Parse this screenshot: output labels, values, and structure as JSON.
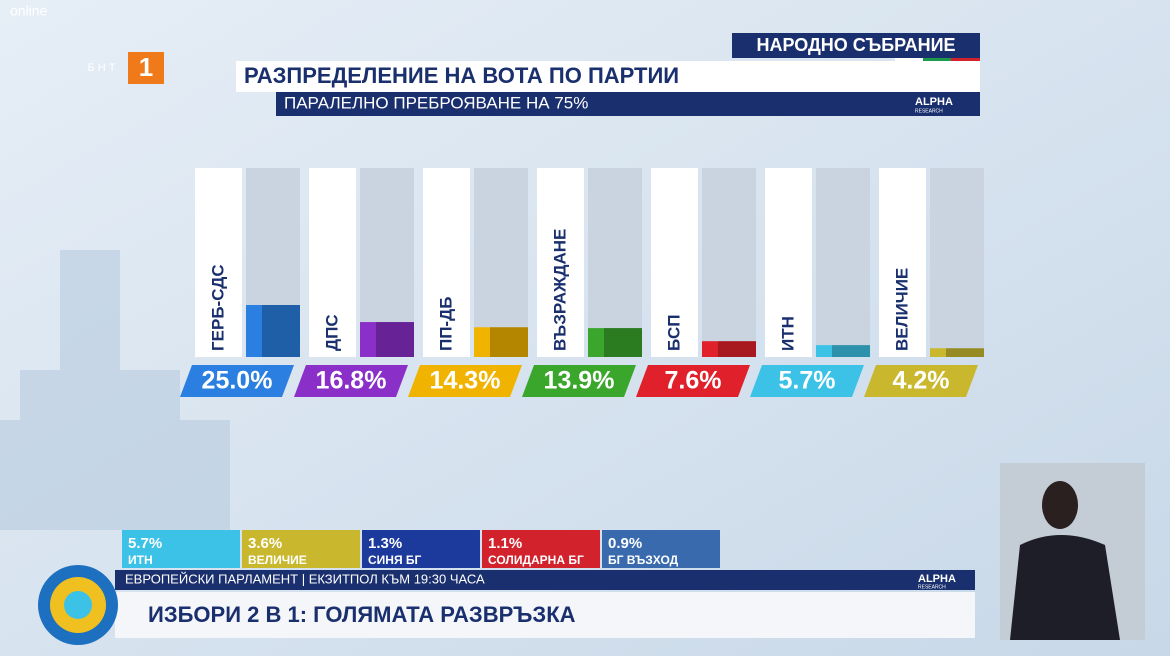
{
  "channel": {
    "watermark": "online",
    "logo_text": "БНТ",
    "logo_number": "1"
  },
  "header": {
    "tag": "НАРОДНО СЪБРАНИЕ",
    "source": "ALPHA",
    "source_sub": "RESEARCH"
  },
  "chart_data": {
    "type": "bar",
    "title": "РАЗПРЕДЕЛЕНИЕ НА ВОТА ПО ПАРТИИ",
    "subtitle": "ПАРАЛЕЛНО ПРЕБРОЯВАНЕ НА 75%",
    "categories": [
      "ГЕРБ-СДС",
      "ДПС",
      "ПП-ДБ",
      "ВЪЗРАЖДАНЕ",
      "БСП",
      "ИТН",
      "ВЕЛИЧИЕ"
    ],
    "values": [
      25.0,
      16.8,
      14.3,
      13.9,
      7.6,
      5.7,
      4.2
    ],
    "value_labels": [
      "25.0%",
      "16.8%",
      "14.3%",
      "13.9%",
      "7.6%",
      "5.7%",
      "4.2%"
    ],
    "colors": [
      "#2a7fe0",
      "#8a2fc8",
      "#f0b300",
      "#3aa62c",
      "#e0202a",
      "#3cc2e6",
      "#c9b82e"
    ]
  },
  "ticker": {
    "items": [
      {
        "value": "5.7%",
        "name": "ИТН",
        "color": "#3cc2e6"
      },
      {
        "value": "3.6%",
        "name": "ВЕЛИЧИЕ",
        "color": "#c9b82e"
      },
      {
        "value": "1.3%",
        "name": "СИНЯ БГ",
        "color": "#1c3a9c"
      },
      {
        "value": "1.1%",
        "name": "СОЛИДАРНА БГ",
        "color": "#d2222c"
      },
      {
        "value": "0.9%",
        "name": "БГ ВЪЗХОД",
        "color": "#3a6aae"
      }
    ],
    "caption": "ЕВРОПЕЙСКИ ПАРЛАМЕНТ | ЕКЗИТПОЛ КЪМ 19:30 ЧАСА",
    "headline": "ИЗБОРИ 2 В 1: ГОЛЯМАТА РАЗВРЪЗКА",
    "source": "ALPHA",
    "source_sub": "RESEARCH"
  }
}
